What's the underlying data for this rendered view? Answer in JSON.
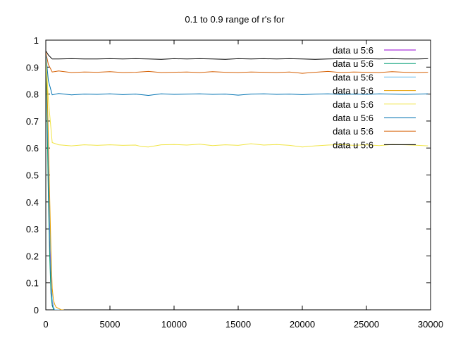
{
  "chart_data": {
    "type": "line",
    "title": "0.1 to 0.9 range of r's for",
    "xlabel": "",
    "ylabel": "",
    "xlim": [
      0,
      30000
    ],
    "ylim": [
      0,
      1
    ],
    "x_ticks": [
      "0",
      "5000",
      "10000",
      "15000",
      "20000",
      "25000",
      "30000"
    ],
    "y_ticks": [
      "0",
      "0.1",
      "0.2",
      "0.3",
      "0.4",
      "0.5",
      "0.6",
      "0.7",
      "0.8",
      "0.9",
      "1"
    ],
    "grid": false,
    "legend_position": "top-right",
    "series": [
      {
        "name": "data u 5:6",
        "color": "#9400d3",
        "x": [
          0,
          100,
          200,
          300,
          400,
          500,
          600,
          700,
          800,
          1000,
          1200
        ],
        "y": [
          0.95,
          0.78,
          0.5,
          0.25,
          0.08,
          0.02,
          0.005,
          0,
          0,
          0,
          0
        ]
      },
      {
        "name": "data u 5:6",
        "color": "#009e73",
        "x": [
          0,
          100,
          200,
          300,
          400,
          500,
          600,
          700,
          800,
          1000,
          1200
        ],
        "y": [
          0.95,
          0.72,
          0.42,
          0.2,
          0.06,
          0.015,
          0.003,
          0,
          0,
          0,
          0
        ]
      },
      {
        "name": "data u 5:6",
        "color": "#56b4e9",
        "x": [
          0,
          100,
          200,
          300,
          400,
          500,
          600,
          700,
          800,
          1000,
          1200
        ],
        "y": [
          0.94,
          0.8,
          0.6,
          0.35,
          0.15,
          0.04,
          0.01,
          0,
          0,
          0,
          0
        ]
      },
      {
        "name": "data u 5:6",
        "color": "#e69f00",
        "x": [
          0,
          100,
          200,
          300,
          400,
          500,
          600,
          700,
          800,
          1000,
          1200,
          1400
        ],
        "y": [
          0.95,
          0.82,
          0.65,
          0.42,
          0.22,
          0.08,
          0.035,
          0.02,
          0.01,
          0.005,
          0,
          0
        ]
      },
      {
        "name": "data u 5:6",
        "color": "#f0e442",
        "x": [
          0,
          200,
          500,
          1000,
          2000,
          3000,
          4000,
          5000,
          6000,
          7000,
          7500,
          8000,
          9000,
          10000,
          11000,
          12000,
          13000,
          14000,
          15000,
          16000,
          17000,
          18000,
          19000,
          20000,
          21000,
          22000,
          23000,
          24000,
          25000,
          26000,
          27000,
          28000,
          29000,
          29800
        ],
        "y": [
          0.95,
          0.78,
          0.62,
          0.612,
          0.608,
          0.612,
          0.61,
          0.612,
          0.61,
          0.611,
          0.605,
          0.604,
          0.612,
          0.613,
          0.611,
          0.614,
          0.609,
          0.612,
          0.61,
          0.616,
          0.611,
          0.613,
          0.61,
          0.604,
          0.608,
          0.611,
          0.613,
          0.61,
          0.612,
          0.609,
          0.613,
          0.612,
          0.61,
          0.608
        ]
      },
      {
        "name": "data u 5:6",
        "color": "#0072b2",
        "x": [
          0,
          200,
          500,
          1000,
          2000,
          3000,
          4000,
          5000,
          6000,
          7000,
          8000,
          9000,
          10000,
          11000,
          12000,
          13000,
          14000,
          15000,
          16000,
          17000,
          18000,
          19000,
          20000,
          21000,
          22000,
          23000,
          24000,
          25000,
          26000,
          27000,
          28000,
          29000,
          29800
        ],
        "y": [
          0.95,
          0.85,
          0.797,
          0.802,
          0.797,
          0.8,
          0.799,
          0.801,
          0.798,
          0.8,
          0.795,
          0.801,
          0.799,
          0.8,
          0.801,
          0.799,
          0.8,
          0.796,
          0.8,
          0.801,
          0.799,
          0.8,
          0.798,
          0.8,
          0.801,
          0.799,
          0.8,
          0.799,
          0.801,
          0.8,
          0.799,
          0.8,
          0.801
        ]
      },
      {
        "name": "data u 5:6",
        "color": "#d55e00",
        "x": [
          0,
          200,
          500,
          1000,
          2000,
          3000,
          4000,
          5000,
          6000,
          7000,
          8000,
          9000,
          10000,
          11000,
          12000,
          13000,
          14000,
          15000,
          16000,
          17000,
          18000,
          19000,
          20000,
          21000,
          22000,
          23000,
          24000,
          25000,
          26000,
          27000,
          28000,
          29000,
          29800
        ],
        "y": [
          0.955,
          0.91,
          0.882,
          0.886,
          0.88,
          0.882,
          0.881,
          0.883,
          0.88,
          0.881,
          0.884,
          0.88,
          0.881,
          0.882,
          0.88,
          0.883,
          0.881,
          0.88,
          0.882,
          0.881,
          0.88,
          0.882,
          0.877,
          0.881,
          0.884,
          0.88,
          0.882,
          0.881,
          0.88,
          0.883,
          0.881,
          0.88,
          0.881
        ]
      },
      {
        "name": "data u 5:6",
        "color": "#000000",
        "x": [
          0,
          200,
          500,
          1000,
          2000,
          3000,
          4000,
          5000,
          6000,
          7000,
          8000,
          9000,
          10000,
          11000,
          12000,
          13000,
          14000,
          15000,
          16000,
          17000,
          18000,
          19000,
          20000,
          21000,
          22000,
          23000,
          24000,
          25000,
          26000,
          27000,
          28000,
          29000,
          29800
        ],
        "y": [
          0.96,
          0.945,
          0.93,
          0.93,
          0.931,
          0.93,
          0.93,
          0.931,
          0.93,
          0.931,
          0.93,
          0.929,
          0.931,
          0.93,
          0.931,
          0.93,
          0.929,
          0.931,
          0.93,
          0.931,
          0.93,
          0.931,
          0.93,
          0.929,
          0.93,
          0.931,
          0.93,
          0.931,
          0.93,
          0.931,
          0.93,
          0.93,
          0.931
        ]
      }
    ]
  }
}
